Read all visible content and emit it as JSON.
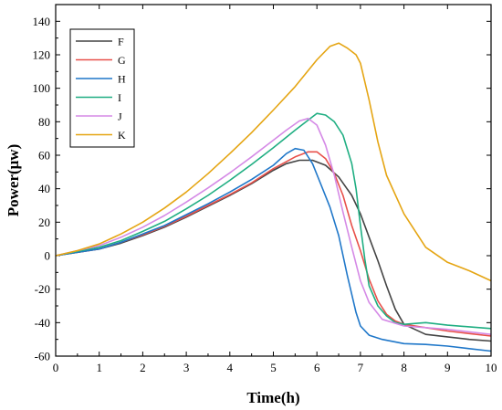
{
  "chart_data": {
    "type": "line",
    "xlabel": "Time(h)",
    "ylabel": "Power(μw)",
    "xlim": [
      0,
      10
    ],
    "ylim": [
      -60,
      150
    ],
    "xticks": [
      0,
      1,
      2,
      3,
      4,
      5,
      6,
      7,
      8,
      9,
      10
    ],
    "yticks": [
      -60,
      -40,
      -20,
      0,
      20,
      40,
      60,
      80,
      100,
      120,
      140
    ],
    "grid": false,
    "legend_position": "top-left",
    "series": [
      {
        "name": "F",
        "color": "#444444",
        "x": [
          0,
          0.5,
          1,
          1.5,
          2,
          2.5,
          3,
          3.5,
          4,
          4.5,
          5,
          5.3,
          5.6,
          5.9,
          6.2,
          6.5,
          6.8,
          7.0,
          7.2,
          7.4,
          7.6,
          7.8,
          8.0,
          8.5,
          9.0,
          9.5,
          10
        ],
        "y": [
          0,
          2,
          4,
          7.5,
          12,
          17,
          23,
          29.5,
          36,
          43,
          51,
          55,
          57,
          57,
          54,
          47,
          36,
          25,
          11,
          -3,
          -18,
          -32,
          -41,
          -47,
          -48.5,
          -50,
          -51
        ]
      },
      {
        "name": "G",
        "color": "#E8504A",
        "x": [
          0,
          0.5,
          1,
          1.5,
          2,
          2.5,
          3,
          3.5,
          4,
          4.5,
          5,
          5.5,
          5.8,
          6.0,
          6.2,
          6.4,
          6.6,
          6.8,
          7.0,
          7.2,
          7.4,
          7.6,
          7.8,
          8.0,
          8.5,
          9.0,
          9.5,
          10
        ],
        "y": [
          0,
          2,
          4,
          8,
          12.5,
          17.5,
          23.5,
          30,
          36.5,
          43.5,
          52,
          59,
          62,
          62,
          58,
          49,
          36,
          18,
          3,
          -14,
          -27,
          -35,
          -39,
          -41,
          -43,
          -45,
          -46.5,
          -48
        ]
      },
      {
        "name": "H",
        "color": "#1F77C9",
        "x": [
          0,
          0.5,
          1,
          1.5,
          2,
          2.5,
          3,
          3.5,
          4,
          4.5,
          5,
          5.3,
          5.5,
          5.7,
          5.9,
          6.1,
          6.3,
          6.5,
          6.7,
          6.9,
          7.0,
          7.2,
          7.5,
          8.0,
          8.5,
          9.0,
          9.5,
          10
        ],
        "y": [
          0,
          2,
          4,
          8,
          13,
          18,
          24.5,
          31,
          38,
          45.5,
          54,
          61,
          64,
          63,
          55,
          42,
          29,
          12,
          -12,
          -34,
          -42,
          -47.5,
          -50,
          -52.5,
          -53,
          -54,
          -55.5,
          -57
        ]
      },
      {
        "name": "I",
        "color": "#1FAE82",
        "x": [
          0,
          0.5,
          1,
          1.5,
          2,
          2.5,
          3,
          3.5,
          4,
          4.5,
          5,
          5.5,
          5.8,
          6.0,
          6.2,
          6.4,
          6.6,
          6.8,
          6.9,
          7.0,
          7.1,
          7.2,
          7.4,
          7.6,
          7.8,
          8.0,
          8.5,
          9.0,
          9.5,
          10
        ],
        "y": [
          0,
          2.5,
          5,
          9,
          14.5,
          20.5,
          28,
          36,
          45,
          54.5,
          64.5,
          75,
          81,
          85,
          84,
          80,
          72,
          55,
          40,
          18,
          -2,
          -18,
          -30,
          -36,
          -40,
          -41,
          -40,
          -41.5,
          -42.5,
          -43.5
        ]
      },
      {
        "name": "J",
        "color": "#D58AE6",
        "x": [
          0,
          0.5,
          1,
          1.5,
          2,
          2.5,
          3,
          3.5,
          4,
          4.5,
          5,
          5.3,
          5.6,
          5.8,
          6.0,
          6.2,
          6.4,
          6.6,
          6.8,
          7.0,
          7.2,
          7.5,
          8.0,
          8.5,
          9.0,
          9.5,
          10
        ],
        "y": [
          0,
          3,
          6,
          11,
          17,
          24,
          32,
          40.5,
          49.5,
          59,
          69,
          75,
          80.5,
          82,
          78,
          66,
          48,
          26,
          5,
          -15,
          -28,
          -38,
          -42,
          -43,
          -44,
          -45.5,
          -47
        ]
      },
      {
        "name": "K",
        "color": "#E5A513",
        "x": [
          0,
          0.5,
          1,
          1.5,
          2,
          2.5,
          3,
          3.5,
          4,
          4.5,
          5,
          5.5,
          6.0,
          6.3,
          6.5,
          6.7,
          6.9,
          7.0,
          7.2,
          7.4,
          7.6,
          8.0,
          8.5,
          9.0,
          9.5,
          10
        ],
        "y": [
          0,
          3,
          7,
          13,
          20,
          28.5,
          38,
          49,
          61,
          73.5,
          87,
          101,
          117,
          125,
          127,
          124,
          120,
          115,
          93,
          68,
          48,
          25,
          5,
          -4,
          -9,
          -15
        ]
      }
    ]
  }
}
